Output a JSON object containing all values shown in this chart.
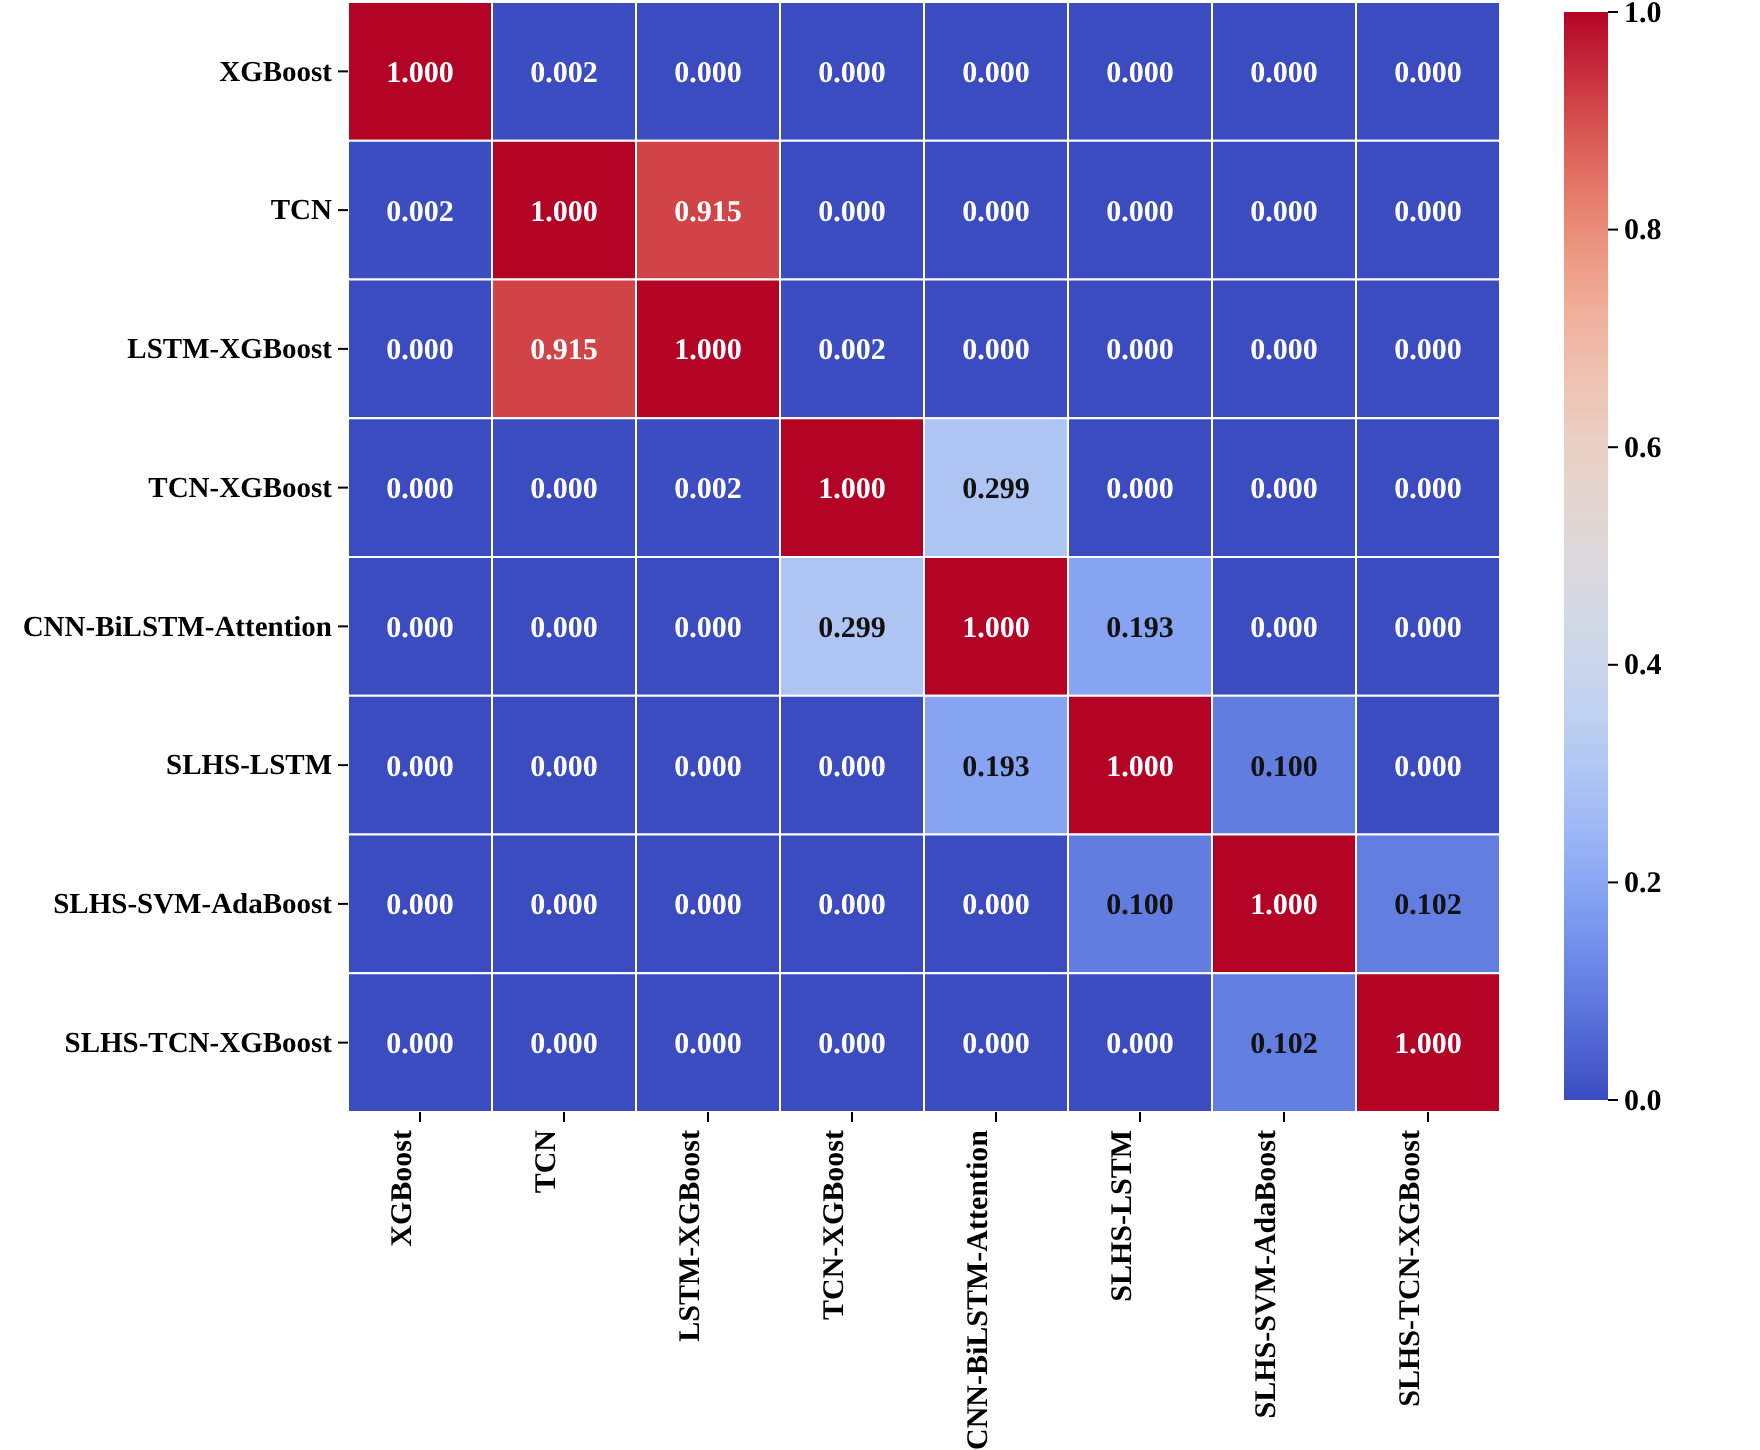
{
  "chart_data": {
    "type": "heatmap",
    "categories": [
      "XGBoost",
      "TCN",
      "LSTM-XGBoost",
      "TCN-XGBoost",
      "CNN-BiLSTM-Attention",
      "SLHS-LSTM",
      "SLHS-SVM-AdaBoost",
      "SLHS-TCN-XGBoost"
    ],
    "y_categories": [
      "XGBoost",
      "TCN",
      "LSTM-XGBoost",
      "TCN-XGBoost",
      "CNN-BiLSTM-Attention",
      "SLHS-LSTM",
      "SLHS-SVM-AdaBoost",
      "SLHS-TCN-XGBoost"
    ],
    "cells": [
      [
        1.0,
        0.002,
        0.0,
        0.0,
        0.0,
        0.0,
        0.0,
        0.0
      ],
      [
        0.002,
        1.0,
        0.915,
        0.0,
        0.0,
        0.0,
        0.0,
        0.0
      ],
      [
        0.0,
        0.915,
        1.0,
        0.002,
        0.0,
        0.0,
        0.0,
        0.0
      ],
      [
        0.0,
        0.0,
        0.002,
        1.0,
        0.299,
        0.0,
        0.0,
        0.0
      ],
      [
        0.0,
        0.0,
        0.0,
        0.299,
        1.0,
        0.193,
        0.0,
        0.0
      ],
      [
        0.0,
        0.0,
        0.0,
        0.0,
        0.193,
        1.0,
        0.1,
        0.0
      ],
      [
        0.0,
        0.0,
        0.0,
        0.0,
        0.0,
        0.1,
        1.0,
        0.102
      ],
      [
        0.0,
        0.0,
        0.0,
        0.0,
        0.0,
        0.0,
        0.102,
        1.0
      ]
    ],
    "cell_labels": [
      [
        "1.000",
        "0.002",
        "0.000",
        "0.000",
        "0.000",
        "0.000",
        "0.000",
        "0.000"
      ],
      [
        "0.002",
        "1.000",
        "0.915",
        "0.000",
        "0.000",
        "0.000",
        "0.000",
        "0.000"
      ],
      [
        "0.000",
        "0.915",
        "1.000",
        "0.002",
        "0.000",
        "0.000",
        "0.000",
        "0.000"
      ],
      [
        "0.000",
        "0.000",
        "0.002",
        "1.000",
        "0.299",
        "0.000",
        "0.000",
        "0.000"
      ],
      [
        "0.000",
        "0.000",
        "0.000",
        "0.299",
        "1.000",
        "0.193",
        "0.000",
        "0.000"
      ],
      [
        "0.000",
        "0.000",
        "0.000",
        "0.000",
        "0.193",
        "1.000",
        "0.100",
        "0.000"
      ],
      [
        "0.000",
        "0.000",
        "0.000",
        "0.000",
        "0.000",
        "0.100",
        "1.000",
        "0.102"
      ],
      [
        "0.000",
        "0.000",
        "0.000",
        "0.000",
        "0.000",
        "0.000",
        "0.102",
        "1.000"
      ]
    ],
    "data_labels": true,
    "clim": [
      0.0,
      1.0
    ],
    "cticks": [
      {
        "value": 0.0,
        "label": "0.0"
      },
      {
        "value": 0.2,
        "label": "0.2"
      },
      {
        "value": 0.4,
        "label": "0.4"
      },
      {
        "value": 0.6,
        "label": "0.6"
      },
      {
        "value": 0.8,
        "label": "0.8"
      },
      {
        "value": 1.0,
        "label": "1.0"
      }
    ]
  }
}
